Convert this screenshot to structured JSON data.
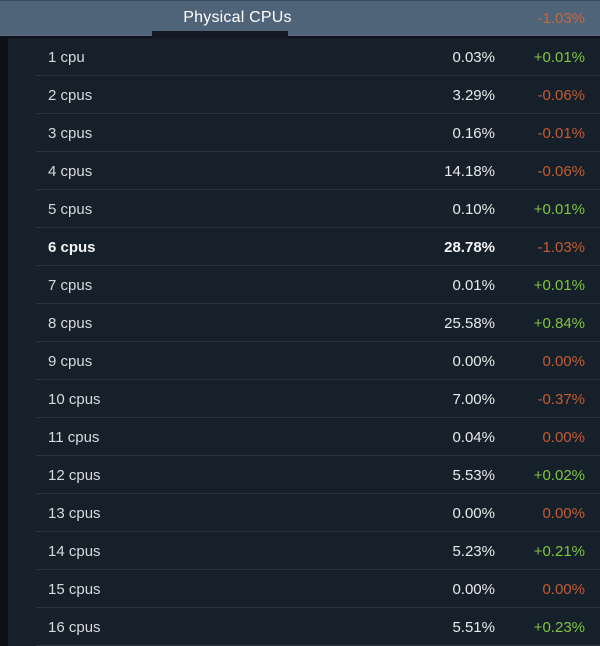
{
  "header": {
    "title": "Physical CPUs",
    "change": "-1.03%"
  },
  "rows": [
    {
      "label": "1 cpu",
      "value": "0.03%",
      "change": "+0.01%",
      "trend": "up",
      "bold": false
    },
    {
      "label": "2 cpus",
      "value": "3.29%",
      "change": "-0.06%",
      "trend": "down",
      "bold": false
    },
    {
      "label": "3 cpus",
      "value": "0.16%",
      "change": "-0.01%",
      "trend": "down",
      "bold": false
    },
    {
      "label": "4 cpus",
      "value": "14.18%",
      "change": "-0.06%",
      "trend": "down",
      "bold": false
    },
    {
      "label": "5 cpus",
      "value": "0.10%",
      "change": "+0.01%",
      "trend": "up",
      "bold": false
    },
    {
      "label": "6 cpus",
      "value": "28.78%",
      "change": "-1.03%",
      "trend": "down",
      "bold": true
    },
    {
      "label": "7 cpus",
      "value": "0.01%",
      "change": "+0.01%",
      "trend": "up",
      "bold": false
    },
    {
      "label": "8 cpus",
      "value": "25.58%",
      "change": "+0.84%",
      "trend": "up",
      "bold": false
    },
    {
      "label": "9 cpus",
      "value": "0.00%",
      "change": "0.00%",
      "trend": "down",
      "bold": false
    },
    {
      "label": "10 cpus",
      "value": "7.00%",
      "change": "-0.37%",
      "trend": "down",
      "bold": false
    },
    {
      "label": "11 cpus",
      "value": "0.04%",
      "change": "0.00%",
      "trend": "down",
      "bold": false
    },
    {
      "label": "12 cpus",
      "value": "5.53%",
      "change": "+0.02%",
      "trend": "up",
      "bold": false
    },
    {
      "label": "13 cpus",
      "value": "0.00%",
      "change": "0.00%",
      "trend": "down",
      "bold": false
    },
    {
      "label": "14 cpus",
      "value": "5.23%",
      "change": "+0.21%",
      "trend": "up",
      "bold": false
    },
    {
      "label": "15 cpus",
      "value": "0.00%",
      "change": "0.00%",
      "trend": "down",
      "bold": false
    },
    {
      "label": "16 cpus",
      "value": "5.51%",
      "change": "+0.23%",
      "trend": "up",
      "bold": false
    }
  ],
  "colors": {
    "positive": "#7ec43f",
    "negative": "#c25b31",
    "header_change": "#bd6a45",
    "header_bg": "#4f6379",
    "row_bg": "#16202a",
    "page_bg": "#0d1117"
  }
}
